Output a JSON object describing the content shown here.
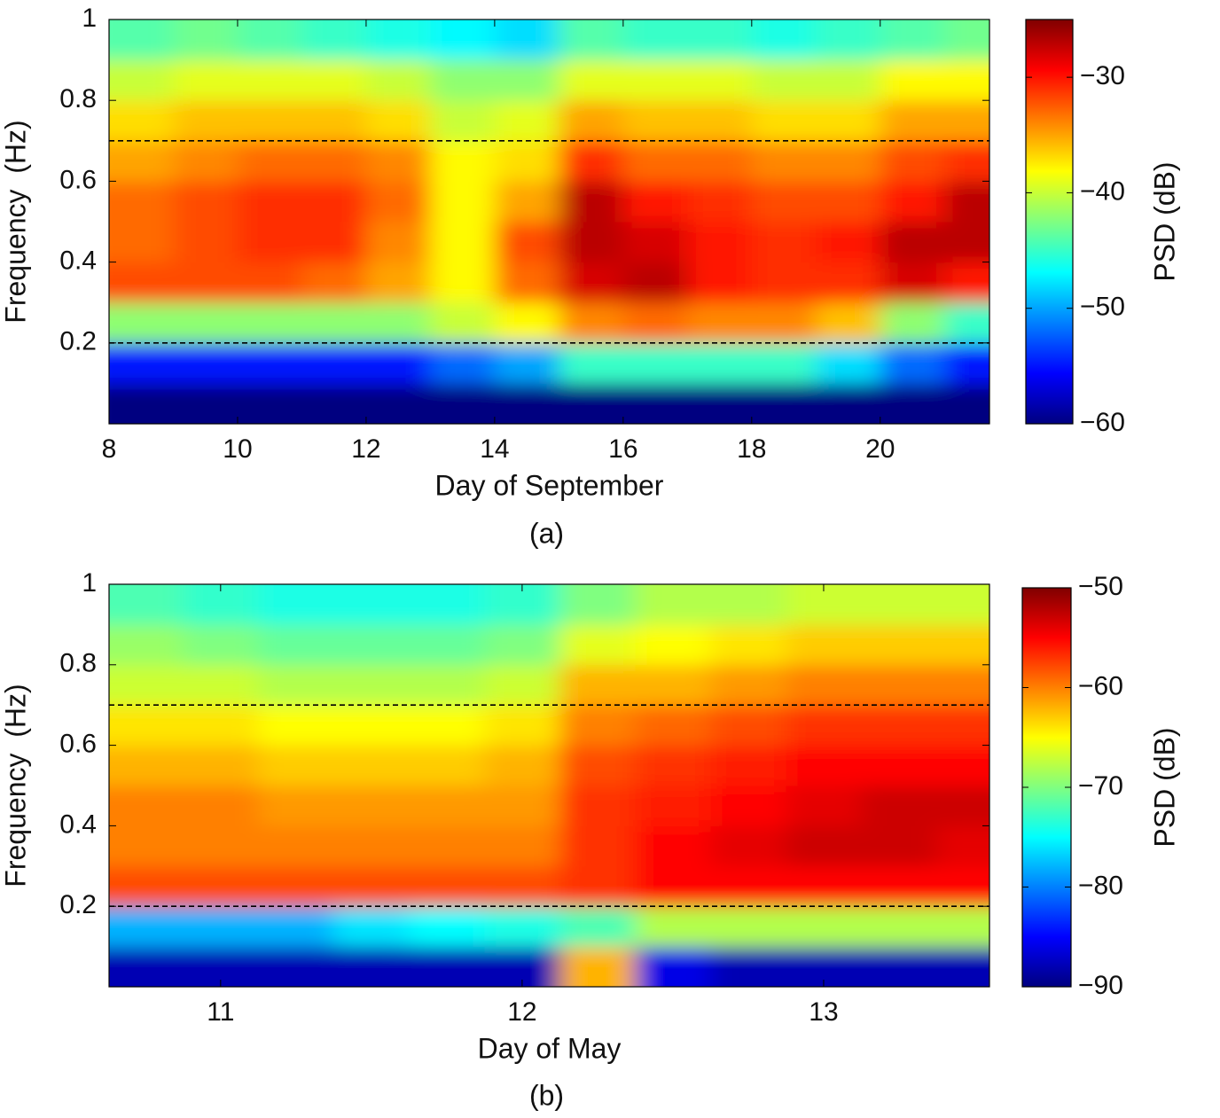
{
  "chart_data": [
    {
      "type": "heatmap",
      "caption": "(a)",
      "x_label": "Day of September",
      "y_label": "Frequency  (Hz)",
      "colorbar_label": "PSD (dB)",
      "x": [
        8.5,
        9.5,
        10.5,
        11.5,
        12.5,
        13.5,
        14.5,
        15.5,
        16.5,
        17.5,
        18.5,
        19.5,
        20.5,
        21.5
      ],
      "y": [
        0.05,
        0.15,
        0.25,
        0.35,
        0.45,
        0.55,
        0.65,
        0.75,
        0.85,
        0.95
      ],
      "values": [
        [
          -60,
          -60,
          -60,
          -60,
          -60,
          -60,
          -60,
          -60,
          -60,
          -60,
          -60,
          -60,
          -60,
          -60
        ],
        [
          -55,
          -55,
          -55,
          -55,
          -55,
          -52,
          -50,
          -45,
          -45,
          -45,
          -45,
          -48,
          -52,
          -55
        ],
        [
          -42,
          -42,
          -42,
          -42,
          -42,
          -40,
          -38,
          -34,
          -33,
          -34,
          -34,
          -36,
          -42,
          -45
        ],
        [
          -32,
          -32,
          -32,
          -33,
          -35,
          -38,
          -33,
          -28,
          -27,
          -30,
          -31,
          -31,
          -28,
          -30
        ],
        [
          -33,
          -32,
          -31,
          -31,
          -34,
          -38,
          -32,
          -27,
          -28,
          -30,
          -31,
          -30,
          -27,
          -27
        ],
        [
          -33,
          -32,
          -31,
          -31,
          -33,
          -38,
          -35,
          -27,
          -30,
          -31,
          -32,
          -32,
          -30,
          -27
        ],
        [
          -35,
          -34,
          -33,
          -33,
          -34,
          -38,
          -37,
          -31,
          -33,
          -33,
          -34,
          -34,
          -32,
          -31
        ],
        [
          -37,
          -36,
          -36,
          -36,
          -37,
          -40,
          -39,
          -35,
          -36,
          -36,
          -37,
          -37,
          -35,
          -35
        ],
        [
          -40,
          -39,
          -39,
          -39,
          -40,
          -42,
          -42,
          -39,
          -39,
          -39,
          -40,
          -40,
          -38,
          -38
        ],
        [
          -44,
          -43,
          -44,
          -45,
          -46,
          -47,
          -48,
          -44,
          -45,
          -45,
          -46,
          -45,
          -44,
          -43
        ]
      ],
      "xlim": [
        8,
        21.7
      ],
      "xticks": [
        8,
        10,
        12,
        14,
        16,
        18,
        20
      ],
      "ylim": [
        0,
        1
      ],
      "yticks": [
        0.2,
        0.4,
        0.6,
        0.8,
        1
      ],
      "hlines": [
        0.2,
        0.7
      ],
      "colormap": "jet",
      "clim": [
        -60,
        -25
      ],
      "cticks": [
        {
          "value": -30,
          "label": "−30"
        },
        {
          "value": -40,
          "label": "−40"
        },
        {
          "value": -50,
          "label": "−50"
        },
        {
          "value": -60,
          "label": "−60"
        }
      ]
    },
    {
      "type": "heatmap",
      "caption": "(b)",
      "x_label": "Day of May",
      "y_label": "Frequency  (Hz)",
      "colorbar_label": "PSD (dB)",
      "x": [
        10.75,
        11,
        11.25,
        11.5,
        11.75,
        12,
        12.25,
        12.5,
        12.75,
        13,
        13.25,
        13.5
      ],
      "y": [
        0.05,
        0.15,
        0.25,
        0.35,
        0.45,
        0.55,
        0.65,
        0.75,
        0.85,
        0.95
      ],
      "values": [
        [
          -88,
          -88,
          -88,
          -88,
          -88,
          -88,
          -62,
          -86,
          -88,
          -88,
          -88,
          -88
        ],
        [
          -78,
          -78,
          -78,
          -76,
          -75,
          -74,
          -72,
          -68,
          -68,
          -68,
          -68,
          -68
        ],
        [
          -58,
          -58,
          -58,
          -58,
          -58,
          -58,
          -57,
          -55,
          -55,
          -55,
          -55,
          -55
        ],
        [
          -60,
          -60,
          -60,
          -60,
          -60,
          -60,
          -57,
          -55,
          -54,
          -53,
          -53,
          -54
        ],
        [
          -60,
          -60,
          -61,
          -61,
          -61,
          -61,
          -57,
          -56,
          -55,
          -54,
          -53,
          -53
        ],
        [
          -62,
          -62,
          -63,
          -63,
          -63,
          -62,
          -58,
          -57,
          -56,
          -55,
          -55,
          -55
        ],
        [
          -64,
          -64,
          -65,
          -65,
          -65,
          -64,
          -60,
          -59,
          -58,
          -57,
          -57,
          -57
        ],
        [
          -67,
          -67,
          -68,
          -68,
          -68,
          -67,
          -62,
          -62,
          -61,
          -60,
          -60,
          -60
        ],
        [
          -69,
          -70,
          -71,
          -71,
          -71,
          -70,
          -66,
          -65,
          -64,
          -63,
          -63,
          -63
        ],
        [
          -72,
          -73,
          -74,
          -74,
          -74,
          -73,
          -70,
          -68,
          -68,
          -67,
          -67,
          -67
        ]
      ],
      "xlim": [
        10.63,
        13.55
      ],
      "xticks": [
        11,
        12,
        13
      ],
      "ylim": [
        0,
        1
      ],
      "yticks": [
        0.2,
        0.4,
        0.6,
        0.8,
        1
      ],
      "hlines": [
        0.2,
        0.7
      ],
      "colormap": "jet",
      "clim": [
        -90,
        -50
      ],
      "cticks": [
        {
          "value": -50,
          "label": "−50"
        },
        {
          "value": -60,
          "label": "−60"
        },
        {
          "value": -70,
          "label": "−70"
        },
        {
          "value": -80,
          "label": "−80"
        },
        {
          "value": -90,
          "label": "−90"
        }
      ]
    }
  ]
}
